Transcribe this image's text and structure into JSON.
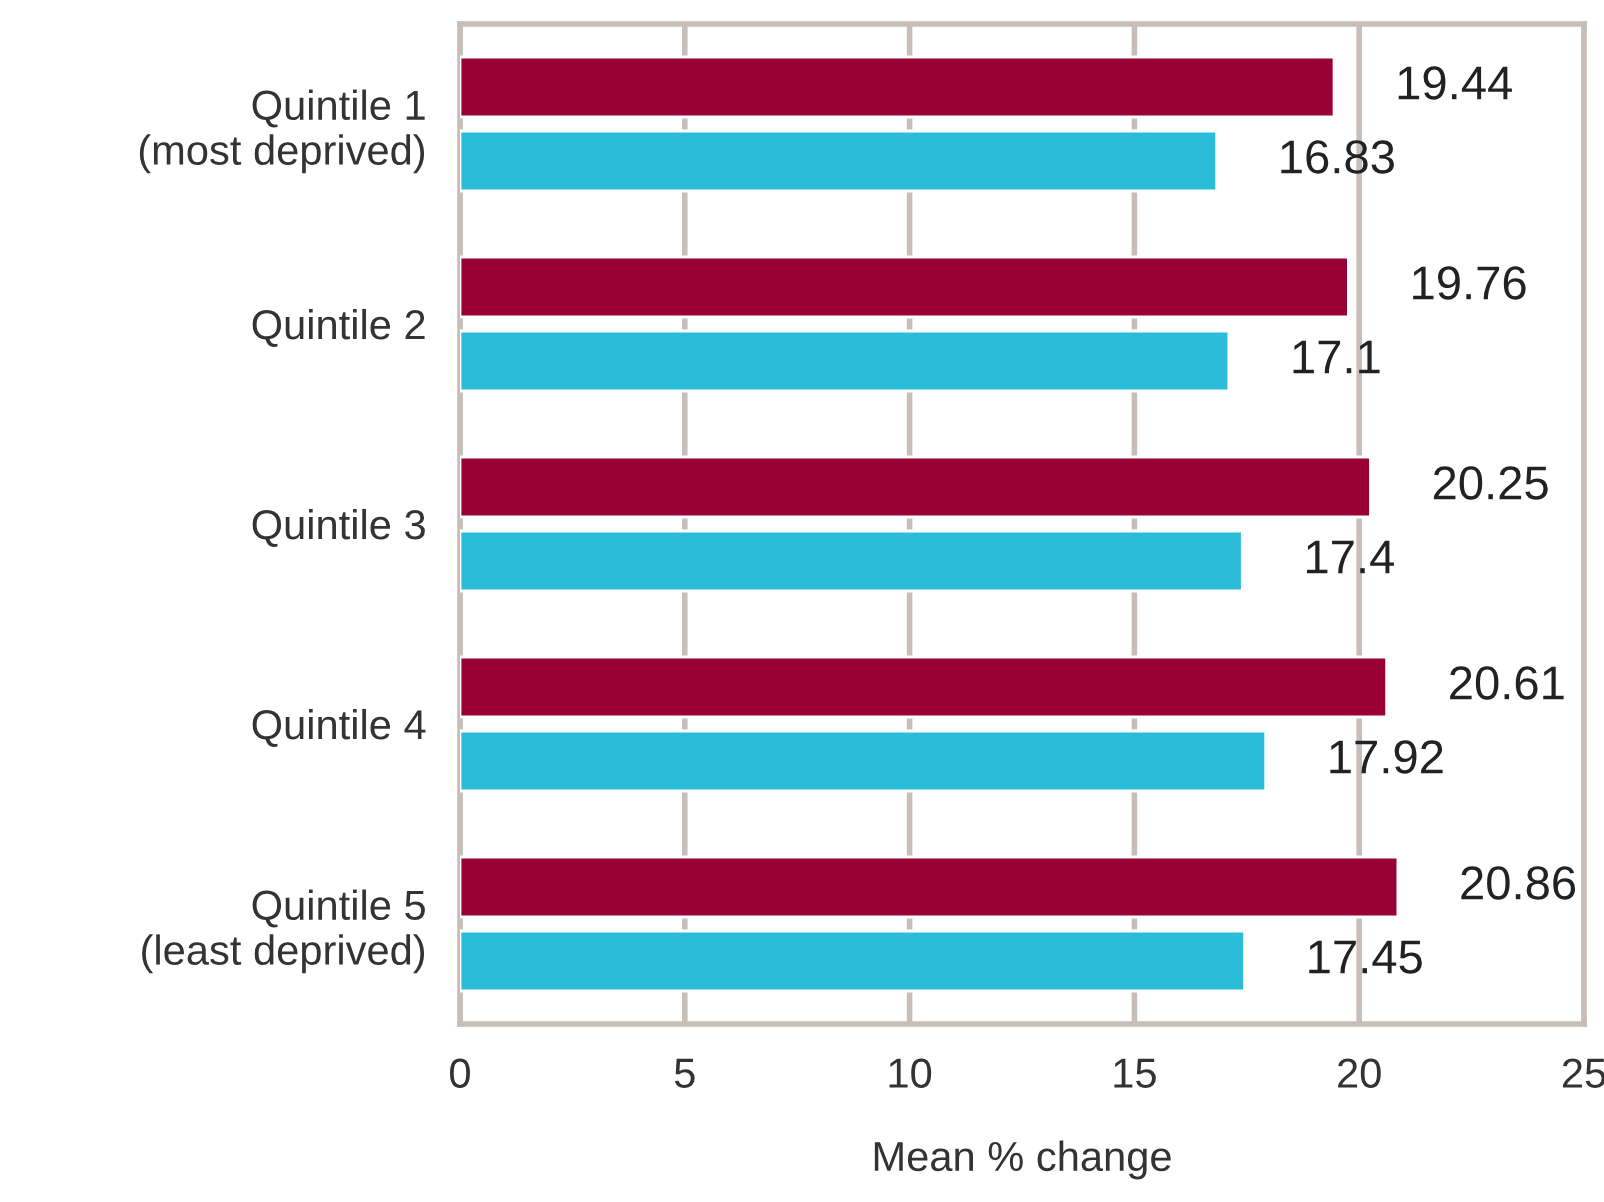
{
  "chart_data": {
    "type": "bar",
    "orientation": "horizontal",
    "xlabel": "Mean % change",
    "categories": [
      "Quintile 1\n(most deprived)",
      "Quintile 2",
      "Quintile 3",
      "Quintile 4",
      "Quintile 5\n(least deprived)"
    ],
    "series": [
      {
        "color": "#990033",
        "values": [
          19.44,
          19.76,
          20.25,
          20.61,
          20.86
        ]
      },
      {
        "color": "#2bbcd9",
        "values": [
          16.83,
          17.1,
          17.4,
          17.92,
          17.45
        ]
      }
    ],
    "xlim": [
      0,
      25
    ],
    "xticks": [
      0,
      5,
      10,
      15,
      20,
      25
    ],
    "grid": "x",
    "data_labels": true,
    "legend": false
  }
}
